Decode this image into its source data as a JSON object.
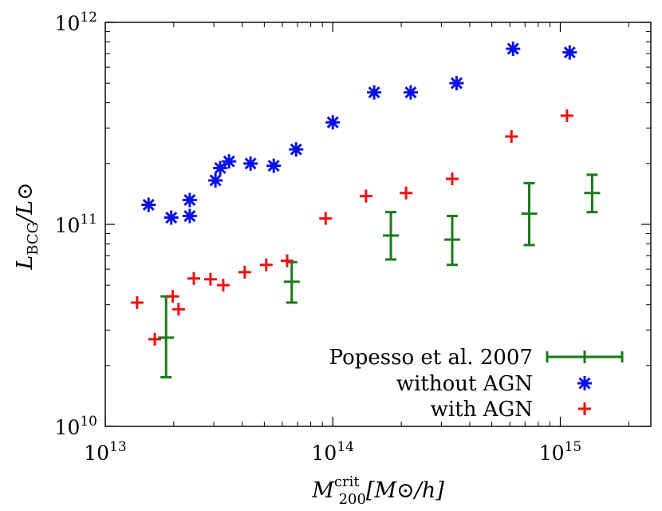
{
  "chart_data": {
    "type": "scatter",
    "x_scale": "log",
    "y_scale": "log",
    "xlim": [
      10000000000000.0,
      2500000000000000.0
    ],
    "ylim": [
      10000000000.0,
      1000000000000.0
    ],
    "xlabel": {
      "base": "M",
      "sub": "200",
      "sup": "crit",
      "unit": "[M⊙/h]"
    },
    "ylabel": {
      "base": "L",
      "sub": "BCG",
      "unit": "/L⊙"
    },
    "x_ticks": [
      {
        "value": 10000000000000.0,
        "base": "10",
        "exp": "13"
      },
      {
        "value": 100000000000000.0,
        "base": "10",
        "exp": "14"
      },
      {
        "value": 1000000000000000.0,
        "base": "10",
        "exp": "15"
      }
    ],
    "y_ticks": [
      {
        "value": 10000000000.0,
        "base": "10",
        "exp": "10"
      },
      {
        "value": 100000000000.0,
        "base": "10",
        "exp": "11"
      },
      {
        "value": 1000000000000.0,
        "base": "10",
        "exp": "12"
      }
    ],
    "grid": false,
    "legend_position": "bottom-right",
    "series": [
      {
        "name": "Popesso et al. 2007",
        "marker": "errorbar",
        "color": "#1a7a1a",
        "points": [
          {
            "x": 18500000000000.0,
            "y": 27500000000.0,
            "ylo": 17500000000.0,
            "yhi": 44000000000.0
          },
          {
            "x": 66000000000000.0,
            "y": 52000000000.0,
            "ylo": 41000000000.0,
            "yhi": 65000000000.0
          },
          {
            "x": 180000000000000.0,
            "y": 88000000000.0,
            "ylo": 67000000000.0,
            "yhi": 115000000000.0
          },
          {
            "x": 335000000000000.0,
            "y": 84000000000.0,
            "ylo": 63000000000.0,
            "yhi": 110000000000.0
          },
          {
            "x": 730000000000000.0,
            "y": 113000000000.0,
            "ylo": 79000000000.0,
            "yhi": 160000000000.0
          },
          {
            "x": 1380000000000000.0,
            "y": 143000000000.0,
            "ylo": 115000000000.0,
            "yhi": 176000000000.0
          }
        ]
      },
      {
        "name": "without AGN",
        "marker": "asterisk",
        "color": "#0a10e6",
        "points": [
          {
            "x": 15500000000000.0,
            "y": 125000000000.0
          },
          {
            "x": 19500000000000.0,
            "y": 108000000000.0
          },
          {
            "x": 23500000000000.0,
            "y": 132000000000.0
          },
          {
            "x": 23500000000000.0,
            "y": 110000000000.0
          },
          {
            "x": 30500000000000.0,
            "y": 165000000000.0
          },
          {
            "x": 32000000000000.0,
            "y": 190000000000.0
          },
          {
            "x": 35000000000000.0,
            "y": 205000000000.0
          },
          {
            "x": 43500000000000.0,
            "y": 200000000000.0
          },
          {
            "x": 55000000000000.0,
            "y": 195000000000.0
          },
          {
            "x": 69000000000000.0,
            "y": 235000000000.0
          },
          {
            "x": 100000000000000.0,
            "y": 320000000000.0
          },
          {
            "x": 152000000000000.0,
            "y": 450000000000.0
          },
          {
            "x": 220000000000000.0,
            "y": 450000000000.0
          },
          {
            "x": 350000000000000.0,
            "y": 500000000000.0
          },
          {
            "x": 620000000000000.0,
            "y": 740000000000.0
          },
          {
            "x": 1100000000000000.0,
            "y": 710000000000.0
          }
        ]
      },
      {
        "name": "with AGN",
        "marker": "plus",
        "color": "#ee1010",
        "points": [
          {
            "x": 13800000000000.0,
            "y": 41000000000.0
          },
          {
            "x": 16500000000000.0,
            "y": 27000000000.0
          },
          {
            "x": 19800000000000.0,
            "y": 44000000000.0
          },
          {
            "x": 21000000000000.0,
            "y": 38000000000.0
          },
          {
            "x": 24500000000000.0,
            "y": 54000000000.0
          },
          {
            "x": 29000000000000.0,
            "y": 53500000000.0
          },
          {
            "x": 33000000000000.0,
            "y": 50000000000.0
          },
          {
            "x": 41000000000000.0,
            "y": 58000000000.0
          },
          {
            "x": 51000000000000.0,
            "y": 63000000000.0
          },
          {
            "x": 63000000000000.0,
            "y": 66000000000.0
          },
          {
            "x": 93000000000000.0,
            "y": 107000000000.0
          },
          {
            "x": 140000000000000.0,
            "y": 138000000000.0
          },
          {
            "x": 210000000000000.0,
            "y": 143000000000.0
          },
          {
            "x": 335000000000000.0,
            "y": 168000000000.0
          },
          {
            "x": 610000000000000.0,
            "y": 272000000000.0
          },
          {
            "x": 1070000000000000.0,
            "y": 345000000000.0
          }
        ]
      }
    ]
  }
}
